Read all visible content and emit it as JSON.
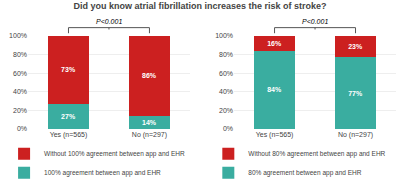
{
  "title": "Did you know atrial fibrillation increases the risk of stroke?",
  "chart_data": [
    {
      "type": "bar",
      "stacked": true,
      "data_labels": true,
      "grid": true,
      "categories": [
        "Yes (n=565)",
        "No (n=297)"
      ],
      "series": [
        {
          "name": "100% agreement between app and EHR",
          "color": "#3aada0",
          "values": [
            27,
            14
          ],
          "value_labels": [
            "27%",
            "14%"
          ]
        },
        {
          "name": "Without 100% agreement between app and EHR",
          "color": "#cc2020",
          "values": [
            73,
            86
          ],
          "value_labels": [
            "73%",
            "86%"
          ]
        }
      ],
      "annotations": [
        "P<0.001"
      ],
      "ylim": [
        0,
        100
      ],
      "yticks": [
        {
          "value": 0,
          "label": "0%"
        },
        {
          "value": 20,
          "label": "20%"
        },
        {
          "value": 40,
          "label": "40%"
        },
        {
          "value": 60,
          "label": "60%"
        },
        {
          "value": 80,
          "label": "80%"
        },
        {
          "value": 100,
          "label": "100%"
        }
      ]
    },
    {
      "type": "bar",
      "stacked": true,
      "data_labels": true,
      "grid": true,
      "categories": [
        "Yes (n=565)",
        "No (n=297)"
      ],
      "series": [
        {
          "name": "80% agreement between app and EHR",
          "color": "#3aada0",
          "values": [
            84,
            77
          ],
          "value_labels": [
            "84%",
            "77%"
          ]
        },
        {
          "name": "Without 80% agreement between app and EHR",
          "color": "#cc2020",
          "values": [
            16,
            23
          ],
          "value_labels": [
            "16%",
            "23%"
          ]
        }
      ],
      "annotations": [
        "P<0.001"
      ],
      "ylim": [
        0,
        100
      ],
      "yticks": [
        {
          "value": 0,
          "label": "0%"
        },
        {
          "value": 20,
          "label": "20%"
        },
        {
          "value": 40,
          "label": "40%"
        },
        {
          "value": 60,
          "label": "60%"
        },
        {
          "value": 80,
          "label": "80%"
        },
        {
          "value": 100,
          "label": "100%"
        }
      ]
    }
  ]
}
